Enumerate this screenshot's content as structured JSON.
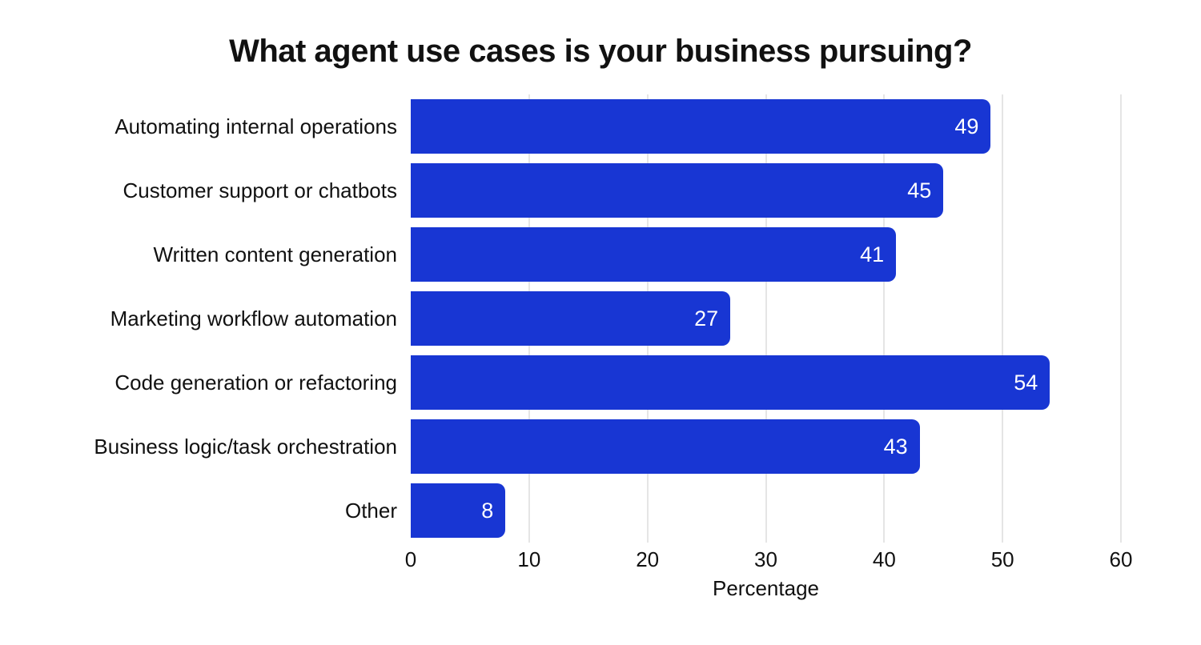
{
  "page": {
    "background": "#ffffff"
  },
  "chart_data": {
    "type": "bar",
    "orientation": "horizontal",
    "title": "What agent use cases is your business pursuing?",
    "categories": [
      "Automating internal operations",
      "Customer support or chatbots",
      "Written content generation",
      "Marketing workflow automation",
      "Code generation or refactoring",
      "Business logic/task orchestration",
      "Other"
    ],
    "values": [
      49,
      45,
      41,
      27,
      54,
      43,
      8
    ],
    "xlabel": "Percentage",
    "ylabel": "",
    "xlim": [
      0,
      60
    ],
    "xticks": [
      0,
      10,
      20,
      30,
      40,
      50,
      60
    ],
    "grid": "vertical gridlines on, no axis lines",
    "legend": "none",
    "bar_color": "#1836d3",
    "value_label_color": "#ffffff",
    "grid_color": "#e5e5e5",
    "text_color": "#111111",
    "background_color": "#ffffff"
  }
}
